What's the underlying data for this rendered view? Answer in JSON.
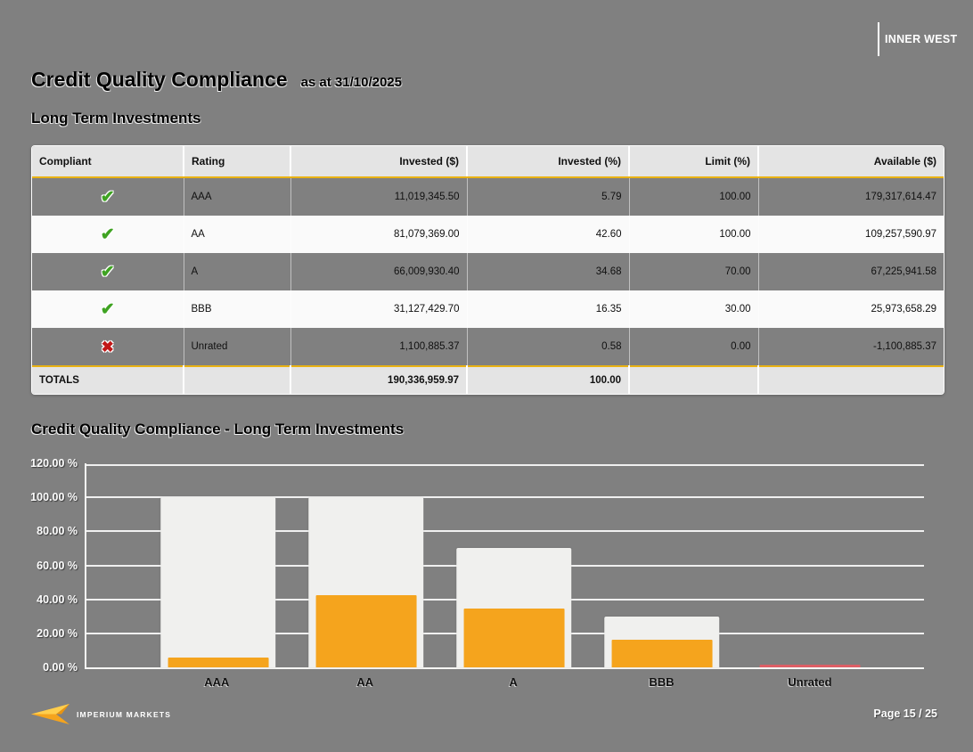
{
  "letterhead": {
    "client": "INNER WEST"
  },
  "header": {
    "title": "Credit Quality Compliance",
    "as_at": "as at 31/10/2025",
    "section": "Long Term Investments"
  },
  "table": {
    "columns": [
      "Compliant",
      "Rating",
      "Invested ($)",
      "Invested (%)",
      "Limit (%)",
      "Available ($)"
    ],
    "rows": [
      {
        "compliant": true,
        "rating": "AAA",
        "invested": "11,019,345.50",
        "invested_pct": "5.79",
        "limit_pct": "100.00",
        "available": "179,317,614.47"
      },
      {
        "compliant": true,
        "rating": "AA",
        "invested": "81,079,369.00",
        "invested_pct": "42.60",
        "limit_pct": "100.00",
        "available": "109,257,590.97"
      },
      {
        "compliant": true,
        "rating": "A",
        "invested": "66,009,930.40",
        "invested_pct": "34.68",
        "limit_pct": "70.00",
        "available": "67,225,941.58"
      },
      {
        "compliant": true,
        "rating": "BBB",
        "invested": "31,127,429.70",
        "invested_pct": "16.35",
        "limit_pct": "30.00",
        "available": "25,973,658.29"
      },
      {
        "compliant": false,
        "rating": "Unrated",
        "invested": "1,100,885.37",
        "invested_pct": "0.58",
        "limit_pct": "0.00",
        "available": "-1,100,885.37"
      }
    ],
    "totals": {
      "label": "TOTALS",
      "invested": "190,336,959.97",
      "invested_pct": "100.00"
    },
    "icons": {
      "compliant": "check-icon",
      "noncompliant": "x-icon"
    }
  },
  "chart_data": {
    "type": "bar",
    "title": "Credit Quality Compliance - Long Term Investments",
    "categories": [
      "AAA",
      "AA",
      "A",
      "BBB",
      "Unrated"
    ],
    "series": [
      {
        "name": "Limit (%)",
        "values": [
          100,
          100,
          70,
          30,
          0
        ]
      },
      {
        "name": "Invested (%)",
        "values": [
          5.79,
          42.6,
          34.68,
          16.35,
          0.58
        ]
      }
    ],
    "ylim": [
      0,
      120
    ],
    "ytick_values": [
      0,
      20,
      40,
      60,
      80,
      100,
      120
    ],
    "yticks": [
      "0.00 %",
      "20.00 %",
      "40.00 %",
      "60.00 %",
      "80.00 %",
      "100.00 %",
      "120.00 %"
    ],
    "grid": true,
    "legend": "none",
    "colors": {
      "limit_bar": "#F0F0EE",
      "invested_bar": "#F5A41D",
      "breach_bar": "#DD5F66"
    }
  },
  "footer": {
    "brand": "IMPERIUM MARKETS",
    "page_label": "Page 15 / 25"
  },
  "colors": {
    "page_bg": "#808080",
    "accent_gold": "#E9B213",
    "check_green": "#3FA322",
    "cross_red": "#C11717",
    "header_bg": "#E4E4E4",
    "row_alt_bg": "#FAFAFA"
  }
}
